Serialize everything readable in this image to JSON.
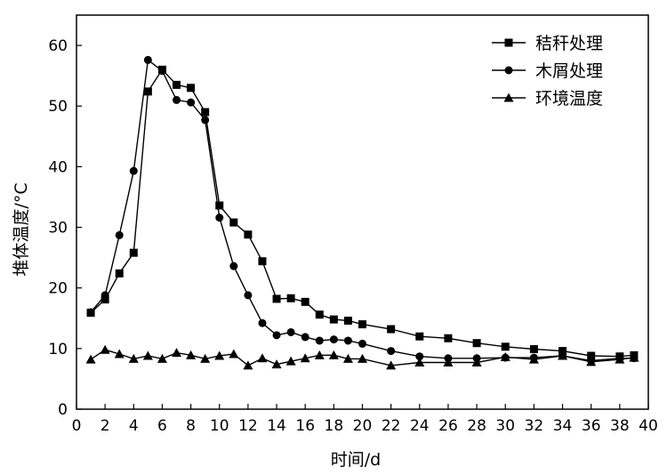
{
  "chart_data": {
    "type": "line",
    "xlabel": "时间/d",
    "ylabel": "堆体温度/°C",
    "xlim": [
      0,
      40
    ],
    "ylim": [
      0,
      65
    ],
    "xticks": [
      0,
      2,
      4,
      6,
      8,
      10,
      12,
      14,
      16,
      18,
      20,
      22,
      24,
      26,
      28,
      30,
      32,
      34,
      36,
      38,
      40
    ],
    "yticks": [
      0,
      10,
      20,
      30,
      40,
      50,
      60
    ],
    "grid": false,
    "legend_position": "top-right",
    "series": [
      {
        "name": "秸秆处理",
        "marker": "square",
        "color": "#000000",
        "points": [
          [
            1,
            15.9
          ],
          [
            2,
            18.1
          ],
          [
            3,
            22.4
          ],
          [
            4,
            25.8
          ],
          [
            5,
            52.4
          ],
          [
            6,
            56.0
          ],
          [
            7,
            53.5
          ],
          [
            8,
            53.0
          ],
          [
            9,
            49.0
          ],
          [
            10,
            33.6
          ],
          [
            11,
            30.8
          ],
          [
            12,
            28.8
          ],
          [
            13,
            24.4
          ],
          [
            14,
            18.2
          ],
          [
            15,
            18.3
          ],
          [
            16,
            17.7
          ],
          [
            17,
            15.6
          ],
          [
            18,
            14.8
          ],
          [
            19,
            14.6
          ],
          [
            20,
            14.0
          ],
          [
            22,
            13.2
          ],
          [
            24,
            12.0
          ],
          [
            26,
            11.7
          ],
          [
            28,
            10.9
          ],
          [
            30,
            10.3
          ],
          [
            32,
            9.9
          ],
          [
            34,
            9.6
          ],
          [
            36,
            8.8
          ],
          [
            38,
            8.7
          ],
          [
            39,
            8.9
          ]
        ]
      },
      {
        "name": "木屑处理",
        "marker": "circle",
        "color": "#000000",
        "points": [
          [
            1,
            16.0
          ],
          [
            2,
            18.8
          ],
          [
            3,
            28.7
          ],
          [
            4,
            39.3
          ],
          [
            5,
            57.6
          ],
          [
            6,
            55.8
          ],
          [
            7,
            51.0
          ],
          [
            8,
            50.6
          ],
          [
            9,
            47.7
          ],
          [
            10,
            31.6
          ],
          [
            11,
            23.6
          ],
          [
            12,
            18.8
          ],
          [
            13,
            14.2
          ],
          [
            14,
            12.2
          ],
          [
            15,
            12.7
          ],
          [
            16,
            11.9
          ],
          [
            17,
            11.3
          ],
          [
            18,
            11.5
          ],
          [
            19,
            11.3
          ],
          [
            20,
            10.8
          ],
          [
            22,
            9.6
          ],
          [
            24,
            8.7
          ],
          [
            26,
            8.4
          ],
          [
            28,
            8.4
          ],
          [
            30,
            8.5
          ],
          [
            32,
            8.5
          ],
          [
            34,
            8.8
          ],
          [
            36,
            8.0
          ],
          [
            38,
            8.4
          ],
          [
            39,
            8.4
          ]
        ]
      },
      {
        "name": "环境温度",
        "marker": "triangle",
        "color": "#000000",
        "points": [
          [
            1,
            8.2
          ],
          [
            2,
            9.8
          ],
          [
            3,
            9.1
          ],
          [
            4,
            8.3
          ],
          [
            5,
            8.8
          ],
          [
            6,
            8.3
          ],
          [
            7,
            9.3
          ],
          [
            8,
            8.9
          ],
          [
            9,
            8.3
          ],
          [
            10,
            8.8
          ],
          [
            11,
            9.1
          ],
          [
            12,
            7.2
          ],
          [
            13,
            8.4
          ],
          [
            14,
            7.4
          ],
          [
            15,
            7.9
          ],
          [
            16,
            8.4
          ],
          [
            17,
            8.9
          ],
          [
            18,
            8.9
          ],
          [
            19,
            8.3
          ],
          [
            20,
            8.3
          ],
          [
            22,
            7.2
          ],
          [
            24,
            7.7
          ],
          [
            26,
            7.7
          ],
          [
            28,
            7.7
          ],
          [
            30,
            8.6
          ],
          [
            32,
            8.2
          ],
          [
            34,
            8.8
          ],
          [
            36,
            7.8
          ],
          [
            38,
            8.2
          ],
          [
            39,
            8.5
          ]
        ]
      }
    ]
  }
}
